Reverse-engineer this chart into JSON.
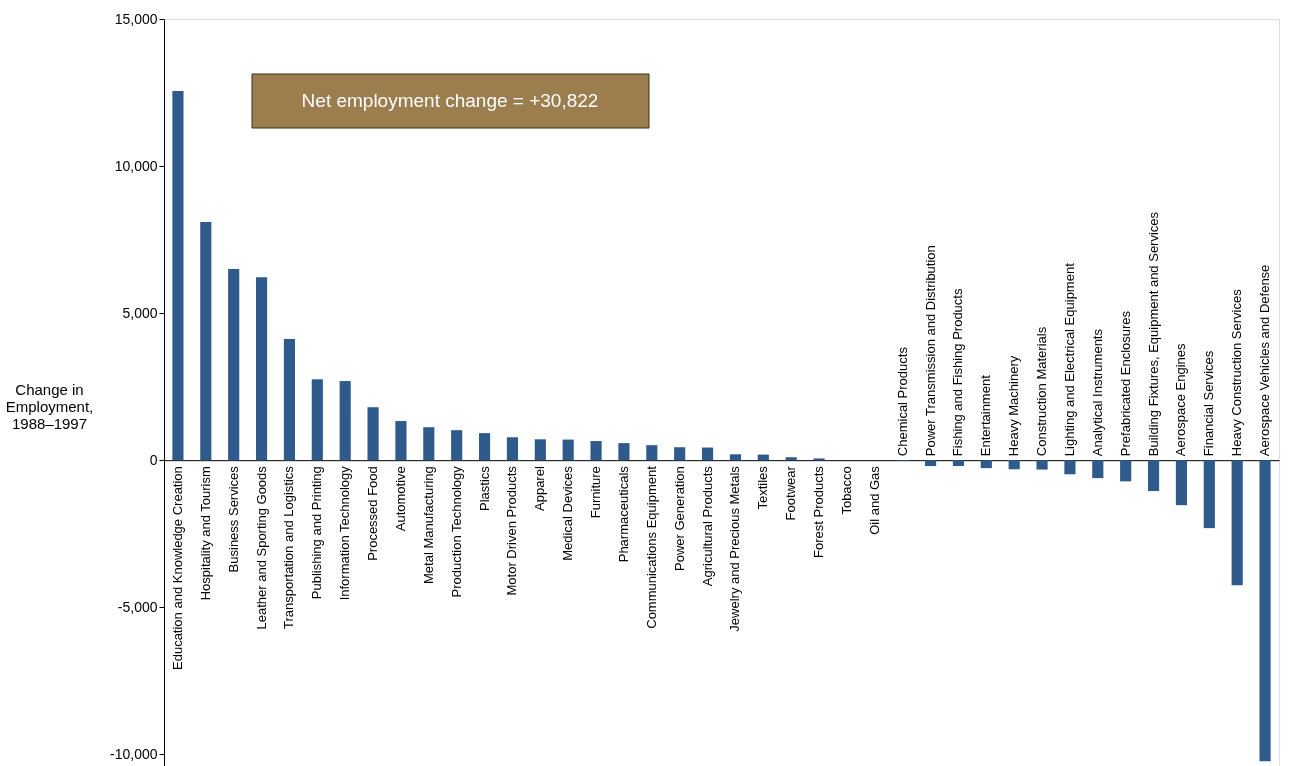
{
  "chart_data": {
    "type": "bar",
    "ylabel": "Change in Employment, 1988–1997",
    "categories": [
      "Education and Knowledge Creation",
      "Hospitality and Tourism",
      "Business Services",
      "Leather and Sporting Goods",
      "Transportation and Logistics",
      "Publishing and Printing",
      "Information Technology",
      "Processed Food",
      "Automotive",
      "Metal Manufacturing",
      "Production Technology",
      "Plastics",
      "Motor Driven Products",
      "Apparel",
      "Medical Devices",
      "Furniture",
      "Pharmaceuticals",
      "Communications Equipment",
      "Power Generation",
      "Agricultural Products",
      "Jewelry and Precious Metals",
      "Textiles",
      "Footwear",
      "Forest Products",
      "Tobacco",
      "Oil and Gas",
      "Chemical Products",
      "Power Transmission and Distribution",
      "Fishing and Fishing Products",
      "Entertainment",
      "Heavy Machinery",
      "Construction Materials",
      "Lighting and Electrical Equipment",
      "Analytical Instruments",
      "Prefabricated Enclosures",
      "Building Fixtures, Equipment and Services",
      "Aerospace Engines",
      "Financial Services",
      "Heavy Construction Services",
      "Aerospace Vehicles and Defense"
    ],
    "values": [
      12550,
      8100,
      6500,
      6220,
      4120,
      2750,
      2690,
      1800,
      1330,
      1120,
      1020,
      920,
      780,
      710,
      700,
      650,
      580,
      510,
      440,
      430,
      200,
      190,
      100,
      60,
      0,
      0,
      -20,
      -200,
      -200,
      -270,
      -310,
      -320,
      -480,
      -610,
      -720,
      -1050,
      -1530,
      -2310,
      -4250,
      -10240
    ],
    "color": "#2f5b8c",
    "ylim": [
      -10500,
      15000
    ],
    "yticks": [
      {
        "value": -10000,
        "label": "-10,000"
      },
      {
        "value": -5000,
        "label": "-5,000"
      },
      0,
      {
        "value": 5000,
        "label": "5,000"
      },
      {
        "value": 10000,
        "label": "10,000"
      },
      {
        "value": 15000,
        "label": "15,000"
      }
    ],
    "grid": false,
    "annotations": [
      "Net employment change = +30,822"
    ]
  }
}
